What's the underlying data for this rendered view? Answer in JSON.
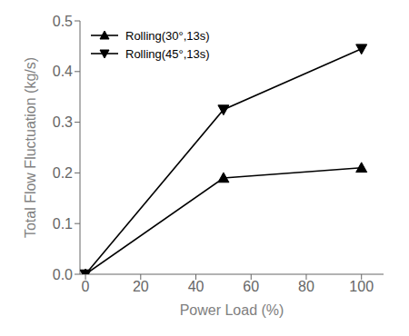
{
  "chart_data": {
    "type": "line",
    "xlabel": "Power Load (%)",
    "ylabel": "Total Flow Fluctuation (kg/s)",
    "x": [
      0,
      50,
      100
    ],
    "series": [
      {
        "name": "Rolling(30°,13s)",
        "color": "#000000",
        "marker": "triangle-up",
        "values": [
          0.0,
          0.19,
          0.21
        ]
      },
      {
        "name": "Rolling(45°,13s)",
        "color": "#000000",
        "marker": "triangle-down",
        "values": [
          0.0,
          0.325,
          0.445
        ]
      }
    ],
    "xlim": [
      -2,
      108
    ],
    "ylim": [
      0.0,
      0.5
    ],
    "xticks": [
      0,
      20,
      40,
      60,
      80,
      100
    ],
    "yticks": [
      {
        "value": 0,
        "label": "0.0"
      },
      0.1,
      0.2,
      0.3,
      0.4,
      0.5
    ],
    "grid": false,
    "legend": "upper left"
  }
}
